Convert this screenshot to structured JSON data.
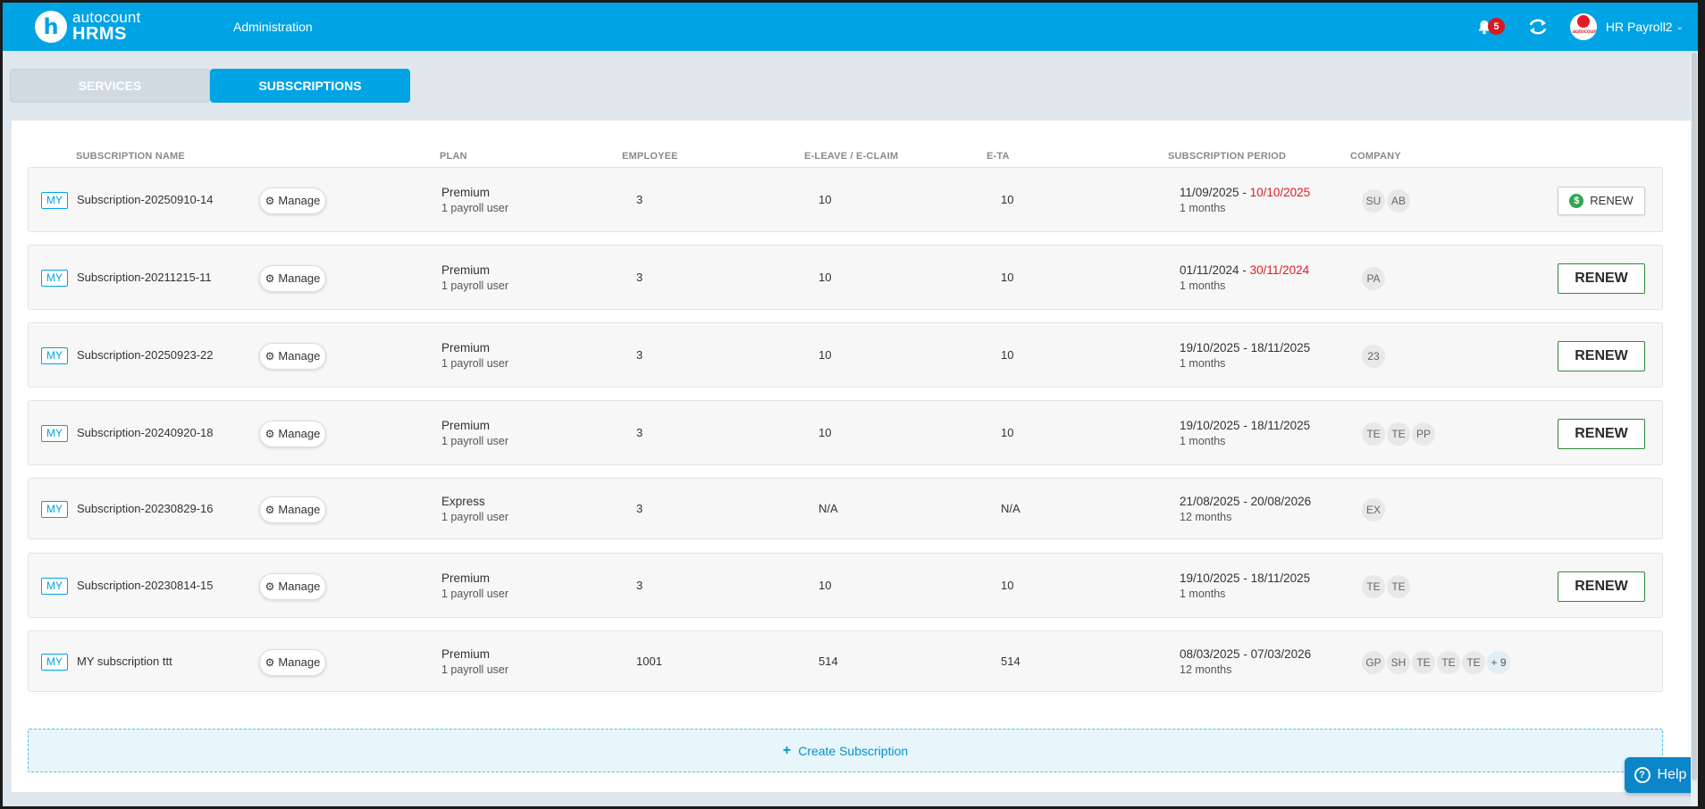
{
  "header": {
    "logo_top": "autocount",
    "logo_bottom": "HRMS",
    "logo_mark": "h",
    "nav": "Administration",
    "notification_count": "5",
    "user_name": "HR Payroll2",
    "avatar_text": "autocount"
  },
  "tabs": [
    {
      "label": "SERVICES",
      "active": false
    },
    {
      "label": "SUBSCRIPTIONS",
      "active": true
    }
  ],
  "columns": {
    "name": "SUBSCRIPTION NAME",
    "plan": "PLAN",
    "employee": "EMPLOYEE",
    "eleave": "E-LEAVE / E-CLAIM",
    "eta": "E-TA",
    "period": "SUBSCRIPTION PERIOD",
    "company": "COMPANY"
  },
  "manage_label": "Manage",
  "renew_label": "RENEW",
  "rows": [
    {
      "tag": "MY",
      "name": "Subscription-20250910-14",
      "plan": "Premium",
      "users": "1 payroll user",
      "employee": "3",
      "eleave": "10",
      "eta": "10",
      "start": "11/09/2025",
      "sep": " - ",
      "end": "10/10/2025",
      "end_red": true,
      "duration": "1 months",
      "companies": [
        "SU",
        "AB"
      ],
      "renew": "small"
    },
    {
      "tag": "MY",
      "name": "Subscription-20211215-11",
      "plan": "Premium",
      "users": "1 payroll user",
      "employee": "3",
      "eleave": "10",
      "eta": "10",
      "start": "01/11/2024",
      "sep": " - ",
      "end": "30/11/2024",
      "end_red": true,
      "duration": "1 months",
      "companies": [
        "PA"
      ],
      "renew": "large"
    },
    {
      "tag": "MY",
      "name": "Subscription-20250923-22",
      "plan": "Premium",
      "users": "1 payroll user",
      "employee": "3",
      "eleave": "10",
      "eta": "10",
      "start": "19/10/2025",
      "sep": " - ",
      "end": "18/11/2025",
      "end_red": false,
      "duration": "1 months",
      "companies": [
        "23"
      ],
      "renew": "large"
    },
    {
      "tag": "MY",
      "name": "Subscription-20240920-18",
      "plan": "Premium",
      "users": "1 payroll user",
      "employee": "3",
      "eleave": "10",
      "eta": "10",
      "start": "19/10/2025",
      "sep": " - ",
      "end": "18/11/2025",
      "end_red": false,
      "duration": "1 months",
      "companies": [
        "TE",
        "TE",
        "PP"
      ],
      "renew": "large"
    },
    {
      "tag": "MY",
      "name": "Subscription-20230829-16",
      "plan": "Express",
      "users": "1 payroll user",
      "employee": "3",
      "eleave": "N/A",
      "eta": "N/A",
      "start": "21/08/2025",
      "sep": " - ",
      "end": "20/08/2026",
      "end_red": false,
      "duration": "12 months",
      "companies": [
        "EX"
      ],
      "renew": "none"
    },
    {
      "tag": "MY",
      "name": "Subscription-20230814-15",
      "plan": "Premium",
      "users": "1 payroll user",
      "employee": "3",
      "eleave": "10",
      "eta": "10",
      "start": "19/10/2025",
      "sep": " - ",
      "end": "18/11/2025",
      "end_red": false,
      "duration": "1 months",
      "companies": [
        "TE",
        "TE"
      ],
      "renew": "large"
    },
    {
      "tag": "MY",
      "name": "MY subscription ttt",
      "plan": "Premium",
      "users": "1 payroll user",
      "employee": "1001",
      "eleave": "514",
      "eta": "514",
      "start": "08/03/2025",
      "sep": " - ",
      "end": "07/03/2026",
      "end_red": false,
      "duration": "12 months",
      "companies": [
        "GP",
        "SH",
        "TE",
        "TE",
        "TE"
      ],
      "more": "+ 9",
      "renew": "none"
    }
  ],
  "create_label": "Create Subscription",
  "help_label": "Help",
  "colors": {
    "brand": "#00a3e4",
    "renew_border": "#2e8b3a",
    "expired": "#e21b23"
  }
}
